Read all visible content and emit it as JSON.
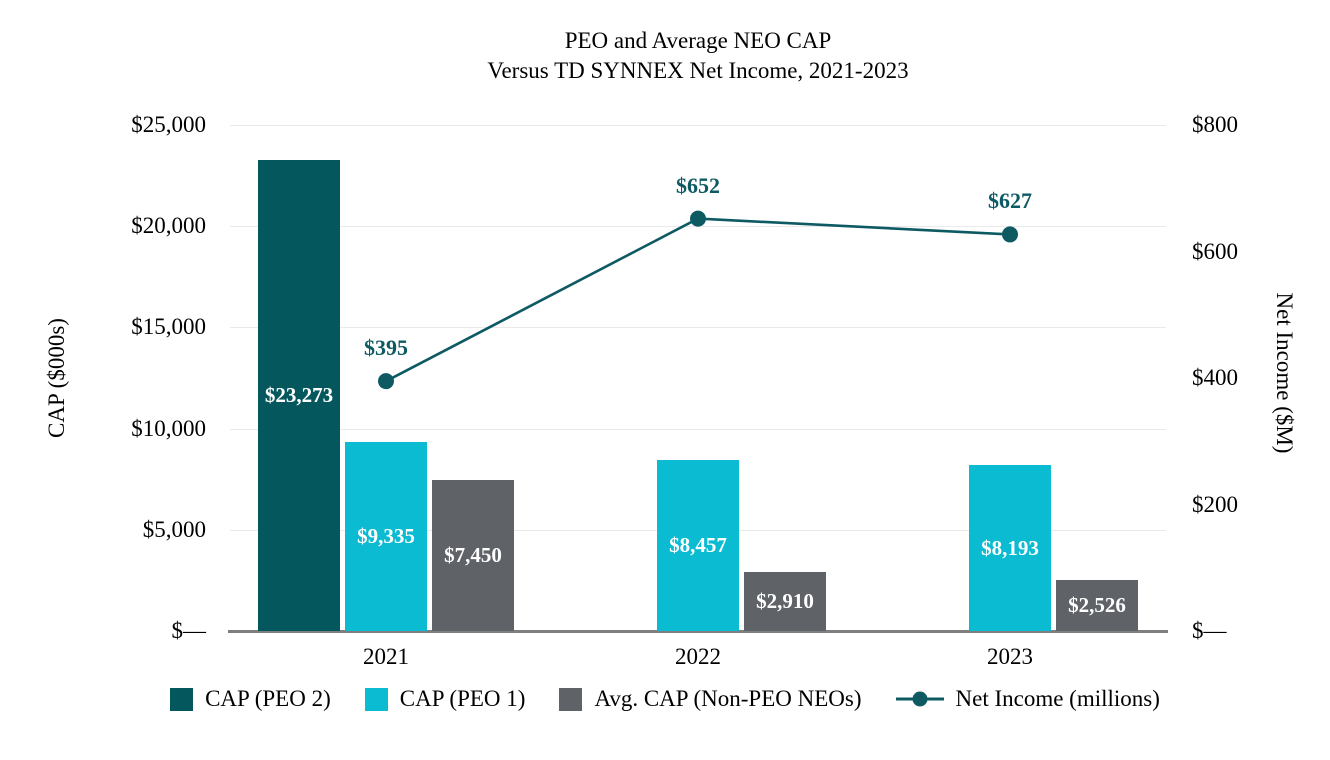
{
  "chart_data": {
    "type": "combo",
    "title_line1": "PEO and Average NEO CAP",
    "title_line2": "Versus TD SYNNEX Net Income, 2021-2023",
    "categories": [
      "2021",
      "2022",
      "2023"
    ],
    "bar_series": [
      {
        "name": "CAP (PEO 2)",
        "color": "#04585D",
        "values": [
          23273,
          null,
          null
        ],
        "value_labels": [
          "$23,273",
          "",
          ""
        ]
      },
      {
        "name": "CAP (PEO 1)",
        "color": "#0BBBD2",
        "values": [
          9335,
          8457,
          8193
        ],
        "value_labels": [
          "$9,335",
          "$8,457",
          "$8,193"
        ]
      },
      {
        "name": "Avg. CAP (Non-PEO NEOs)",
        "color": "#5F6267",
        "values": [
          7450,
          2910,
          2526
        ],
        "value_labels": [
          "$7,450",
          "$2,910",
          "$2,526"
        ]
      }
    ],
    "line_series": {
      "name": "Net Income (millions)",
      "color": "#0E5A63",
      "values": [
        395,
        652,
        627
      ],
      "value_labels": [
        "$395",
        "$652",
        "$627"
      ]
    },
    "left_axis": {
      "label": "CAP ($000s)",
      "min": 0,
      "max": 25000,
      "ticks": [
        "$25,000",
        "$20,000",
        "$15,000",
        "$10,000",
        "$5,000",
        "$—"
      ]
    },
    "right_axis": {
      "label": "Net Income ($M)",
      "min": 0,
      "max": 800,
      "ticks": [
        "$800",
        "$600",
        "$400",
        "$200",
        "$—"
      ]
    },
    "grid": true,
    "legend_position": "bottom"
  },
  "colors": {
    "gridline": "#EAEAEA",
    "baseline": "#7F7F7F",
    "bar_value_text": "#FFFFFF"
  }
}
